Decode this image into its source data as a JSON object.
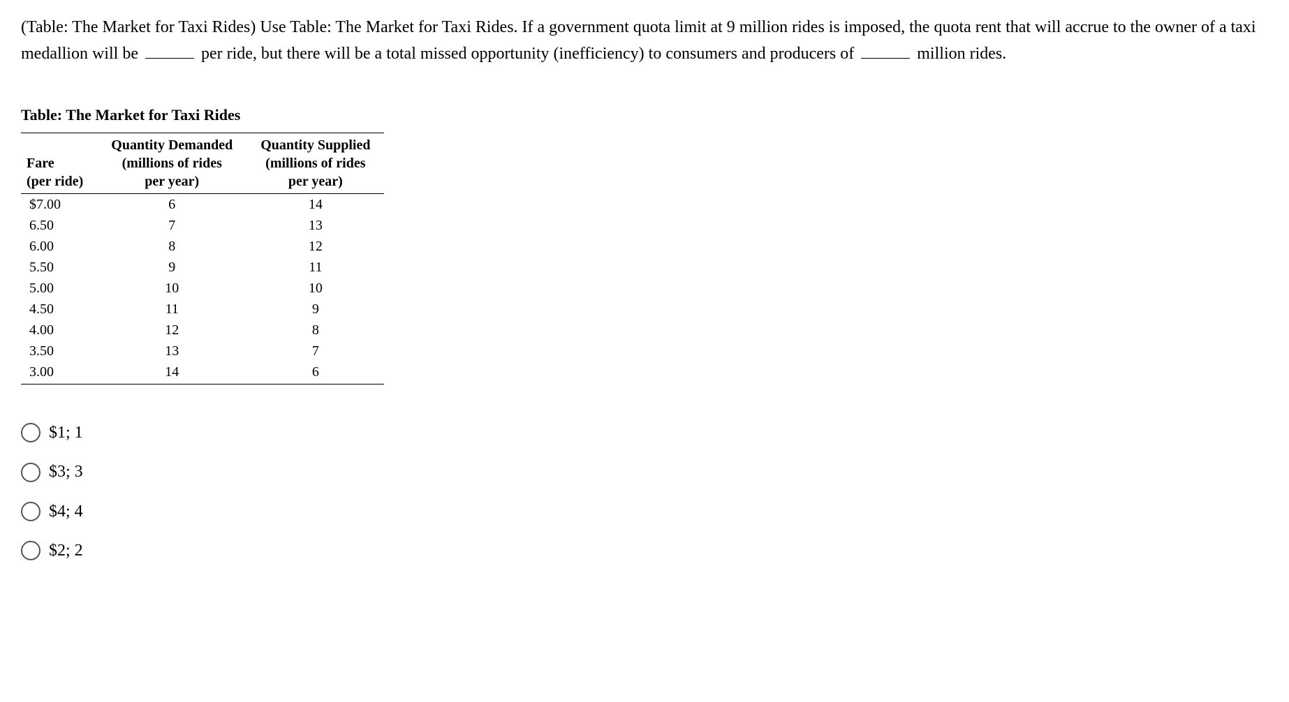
{
  "question": {
    "part1": "(Table: The Market for Taxi Rides) Use Table: The Market for Taxi Rides. If a government quota limit at 9 million rides is imposed, the quota rent that will accrue to the owner of a taxi medallion will be ",
    "part2": " per ride, but there will be a total missed opportunity (inefficiency) to consumers and producers of ",
    "part3": " million rides."
  },
  "table": {
    "title": "Table: The Market for Taxi Rides",
    "headers": {
      "col1_line1": "Fare",
      "col1_line2": "(per ride)",
      "col2_line1": "Quantity Demanded",
      "col2_line2": "(millions of rides",
      "col2_line3": "per year)",
      "col3_line1": "Quantity Supplied",
      "col3_line2": "(millions of rides",
      "col3_line3": "per year)"
    },
    "rows": [
      {
        "fare": "$7.00",
        "demanded": "6",
        "supplied": "14"
      },
      {
        "fare": "6.50",
        "demanded": "7",
        "supplied": "13"
      },
      {
        "fare": "6.00",
        "demanded": "8",
        "supplied": "12"
      },
      {
        "fare": "5.50",
        "demanded": "9",
        "supplied": "11"
      },
      {
        "fare": "5.00",
        "demanded": "10",
        "supplied": "10"
      },
      {
        "fare": "4.50",
        "demanded": "11",
        "supplied": "9"
      },
      {
        "fare": "4.00",
        "demanded": "12",
        "supplied": "8"
      },
      {
        "fare": "3.50",
        "demanded": "13",
        "supplied": "7"
      },
      {
        "fare": "3.00",
        "demanded": "14",
        "supplied": "6"
      }
    ]
  },
  "options": [
    {
      "label": "$1; 1"
    },
    {
      "label": "$3; 3"
    },
    {
      "label": "$4; 4"
    },
    {
      "label": "$2; 2"
    }
  ]
}
